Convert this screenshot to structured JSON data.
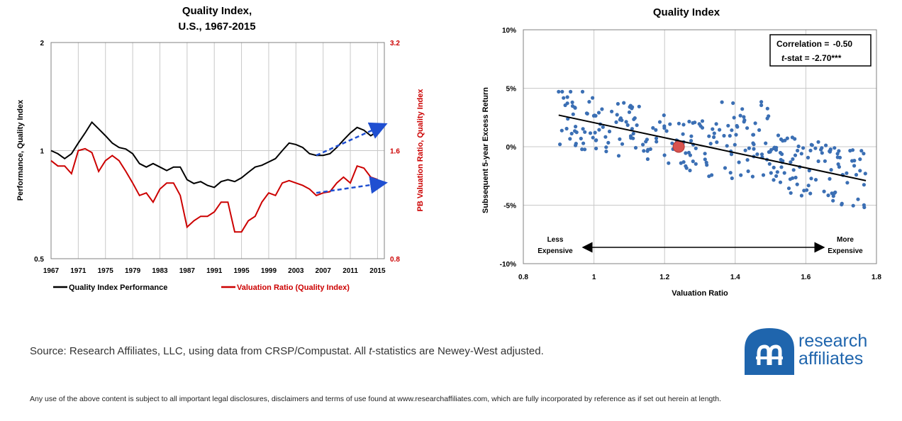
{
  "chart_data": [
    {
      "type": "line",
      "title": [
        "Quality Index,",
        "U.S., 1967-2015"
      ],
      "ylabel": "Performance, Quality Index",
      "y2label": "PB Valuation Ratio, Quality Index",
      "y_scale": "log",
      "ylim": [
        0.5,
        2
      ],
      "y_ticks": [
        "0.5",
        "1",
        "2"
      ],
      "y2lim": [
        0.8,
        3.2
      ],
      "y2_ticks": [
        "0.8",
        "1.6",
        "3.2"
      ],
      "x_ticks": [
        "1967",
        "1971",
        "1975",
        "1979",
        "1983",
        "1987",
        "1991",
        "1995",
        "1999",
        "2003",
        "2007",
        "2011",
        "2015"
      ],
      "xlim": [
        1967,
        2016
      ],
      "grid": true,
      "legend_position": "bottom",
      "series": [
        {
          "name": "Quality Index Performance",
          "axis": "left",
          "color": "#000000",
          "points": [
            [
              1967,
              1.0
            ],
            [
              1968,
              0.98
            ],
            [
              1969,
              0.95
            ],
            [
              1970,
              0.98
            ],
            [
              1971,
              1.05
            ],
            [
              1972,
              1.12
            ],
            [
              1973,
              1.2
            ],
            [
              1974,
              1.15
            ],
            [
              1975,
              1.1
            ],
            [
              1976,
              1.05
            ],
            [
              1977,
              1.02
            ],
            [
              1978,
              1.01
            ],
            [
              1979,
              0.98
            ],
            [
              1980,
              0.92
            ],
            [
              1981,
              0.9
            ],
            [
              1982,
              0.92
            ],
            [
              1983,
              0.9
            ],
            [
              1984,
              0.88
            ],
            [
              1985,
              0.9
            ],
            [
              1986,
              0.9
            ],
            [
              1987,
              0.83
            ],
            [
              1988,
              0.81
            ],
            [
              1989,
              0.82
            ],
            [
              1990,
              0.8
            ],
            [
              1991,
              0.79
            ],
            [
              1992,
              0.82
            ],
            [
              1993,
              0.83
            ],
            [
              1994,
              0.82
            ],
            [
              1995,
              0.84
            ],
            [
              1996,
              0.87
            ],
            [
              1997,
              0.9
            ],
            [
              1998,
              0.91
            ],
            [
              1999,
              0.93
            ],
            [
              2000,
              0.95
            ],
            [
              2001,
              1.0
            ],
            [
              2002,
              1.05
            ],
            [
              2003,
              1.04
            ],
            [
              2004,
              1.02
            ],
            [
              2005,
              0.98
            ],
            [
              2006,
              0.97
            ],
            [
              2007,
              0.97
            ],
            [
              2008,
              0.98
            ],
            [
              2009,
              1.02
            ],
            [
              2010,
              1.07
            ],
            [
              2011,
              1.12
            ],
            [
              2012,
              1.16
            ],
            [
              2013,
              1.14
            ],
            [
              2014,
              1.1
            ],
            [
              2015,
              1.13
            ]
          ]
        },
        {
          "name": "Valuation Ratio (Quality Index)",
          "axis": "right",
          "color": "#cc0000",
          "points": [
            [
              1967,
              1.5
            ],
            [
              1968,
              1.45
            ],
            [
              1969,
              1.45
            ],
            [
              1970,
              1.38
            ],
            [
              1971,
              1.6
            ],
            [
              1972,
              1.62
            ],
            [
              1973,
              1.58
            ],
            [
              1974,
              1.4
            ],
            [
              1975,
              1.5
            ],
            [
              1976,
              1.55
            ],
            [
              1977,
              1.5
            ],
            [
              1978,
              1.4
            ],
            [
              1979,
              1.3
            ],
            [
              1980,
              1.2
            ],
            [
              1981,
              1.22
            ],
            [
              1982,
              1.15
            ],
            [
              1983,
              1.25
            ],
            [
              1984,
              1.3
            ],
            [
              1985,
              1.3
            ],
            [
              1986,
              1.2
            ],
            [
              1987,
              0.98
            ],
            [
              1988,
              1.02
            ],
            [
              1989,
              1.05
            ],
            [
              1990,
              1.05
            ],
            [
              1991,
              1.08
            ],
            [
              1992,
              1.15
            ],
            [
              1993,
              1.15
            ],
            [
              1994,
              0.95
            ],
            [
              1995,
              0.95
            ],
            [
              1996,
              1.02
            ],
            [
              1997,
              1.05
            ],
            [
              1998,
              1.15
            ],
            [
              1999,
              1.22
            ],
            [
              2000,
              1.2
            ],
            [
              2001,
              1.3
            ],
            [
              2002,
              1.32
            ],
            [
              2003,
              1.3
            ],
            [
              2004,
              1.28
            ],
            [
              2005,
              1.25
            ],
            [
              2006,
              1.2
            ],
            [
              2007,
              1.22
            ],
            [
              2008,
              1.23
            ],
            [
              2009,
              1.3
            ],
            [
              2010,
              1.35
            ],
            [
              2011,
              1.3
            ],
            [
              2012,
              1.45
            ],
            [
              2013,
              1.43
            ],
            [
              2014,
              1.35
            ],
            [
              2015,
              1.33
            ]
          ]
        }
      ],
      "arrows": [
        {
          "from": [
            2006,
            0.97
          ],
          "to": [
            2016,
            1.18
          ],
          "axis": "left",
          "color": "#1f4fd1",
          "dashed": true
        },
        {
          "from": [
            2006,
            1.22
          ],
          "to": [
            2016,
            1.3
          ],
          "axis": "right",
          "color": "#1f4fd1",
          "dashed": true
        }
      ]
    },
    {
      "type": "scatter",
      "title": "Quality Index",
      "xlabel": "Valuation Ratio",
      "ylabel": "Subsequent 5-year Excess Return",
      "xlim": [
        0.8,
        1.8
      ],
      "ylim": [
        -0.1,
        0.1
      ],
      "x_ticks": [
        "0.8",
        "1",
        "1.2",
        "1.4",
        "1.6",
        "1.8"
      ],
      "y_ticks": [
        "-10%",
        "-5%",
        "0%",
        "5%",
        "10%"
      ],
      "grid": true,
      "point_color": "#3b6fb4",
      "highlight_point": {
        "x": 1.24,
        "y": 0.0,
        "color": "#d9534f"
      },
      "trendline": {
        "from": [
          0.9,
          0.027
        ],
        "to": [
          1.77,
          -0.029
        ]
      },
      "stats": {
        "correlation_label": "Correlation = ",
        "correlation_value": "-0.50",
        "tstat_label": "t",
        "tstat_rest": "-stat = -2.70***"
      },
      "annotations": {
        "left": [
          "Less",
          "Expensive"
        ],
        "right": [
          "More",
          "Expensive"
        ]
      }
    }
  ],
  "source": {
    "pre": "Source: Research Affiliates, LLC, using data from CRSP/Compustat. All ",
    "italic": "t",
    "post": "-statistics are Newey-West adjusted."
  },
  "disclaimer": "Any use of the above content is subject to all important legal disclosures, disclaimers and terms of use found at www.researchaffiliates.com, which are fully incorporated by reference as if set out herein at length.",
  "logo": {
    "line1": "research",
    "line2": "affiliates",
    "color": "#1f65ad"
  }
}
